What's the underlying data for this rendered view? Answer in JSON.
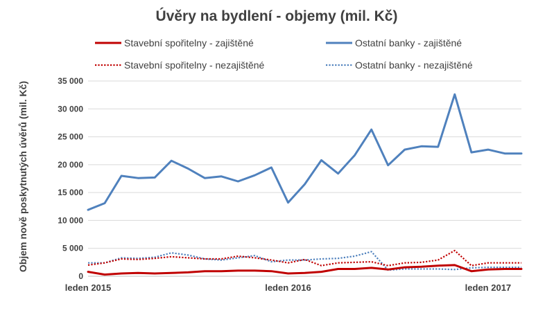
{
  "chart_data": {
    "type": "line",
    "title": "Úvěry na bydlení - objemy (mil. Kč)",
    "ylabel": "Objem nově poskytnutých úvěrů (mil. Kč)",
    "xlabel": "",
    "ylim": [
      0,
      35000
    ],
    "yticks": [
      0,
      5000,
      10000,
      15000,
      20000,
      25000,
      30000,
      35000
    ],
    "ytick_labels": [
      "0",
      "5 000",
      "10 000",
      "15 000",
      "20 000",
      "25 000",
      "30 000",
      "35 000"
    ],
    "x_categories": [
      "2015-01",
      "2015-02",
      "2015-03",
      "2015-04",
      "2015-05",
      "2015-06",
      "2015-07",
      "2015-08",
      "2015-09",
      "2015-10",
      "2015-11",
      "2015-12",
      "2016-01",
      "2016-02",
      "2016-03",
      "2016-04",
      "2016-05",
      "2016-06",
      "2016-07",
      "2016-08",
      "2016-09",
      "2016-10",
      "2016-11",
      "2016-12",
      "2017-01",
      "2017-02",
      "2017-03"
    ],
    "xtick_labels": [
      {
        "at": "2015-01",
        "label": "leden 2015"
      },
      {
        "at": "2016-01",
        "label": "leden 2016"
      },
      {
        "at": "2017-01",
        "label": "leden 2017"
      }
    ],
    "grid": true,
    "legend_position": "top",
    "series": [
      {
        "name": "Stavební spořitelny - zajištěné",
        "color": "#c00000",
        "style": "solid",
        "values": [
          800,
          300,
          500,
          600,
          500,
          600,
          700,
          900,
          900,
          1000,
          1000,
          900,
          500,
          600,
          800,
          1300,
          1300,
          1500,
          1200,
          1600,
          1700,
          1900,
          2000,
          900,
          1200,
          1300,
          1300
        ]
      },
      {
        "name": "Ostatní banky - zajištěné",
        "color": "#4f81bd",
        "style": "solid",
        "values": [
          11900,
          13100,
          18000,
          17600,
          17700,
          20700,
          19300,
          17600,
          17900,
          17000,
          18100,
          19500,
          13200,
          16500,
          20800,
          18400,
          21700,
          26300,
          19900,
          22700,
          23300,
          23200,
          32600,
          22200,
          22700,
          22000,
          22000
        ]
      },
      {
        "name": "Stavební spořitelny - nezajištěné",
        "color": "#c00000",
        "style": "dotted",
        "values": [
          2000,
          2400,
          3100,
          3000,
          3200,
          3500,
          3300,
          3100,
          3100,
          3600,
          3300,
          2900,
          2400,
          3000,
          1900,
          2400,
          2500,
          2600,
          1900,
          2400,
          2500,
          2900,
          4600,
          1900,
          2400,
          2400,
          2400
        ]
      },
      {
        "name": "Ostatní banky - nezajištěné",
        "color": "#4f81bd",
        "style": "dotted",
        "values": [
          2400,
          2400,
          3300,
          3200,
          3400,
          4200,
          3800,
          3100,
          2900,
          3300,
          3700,
          2600,
          2900,
          2900,
          3100,
          3200,
          3600,
          4400,
          1100,
          1300,
          1300,
          1300,
          1200,
          1500,
          1600,
          1600,
          1600
        ]
      }
    ]
  }
}
